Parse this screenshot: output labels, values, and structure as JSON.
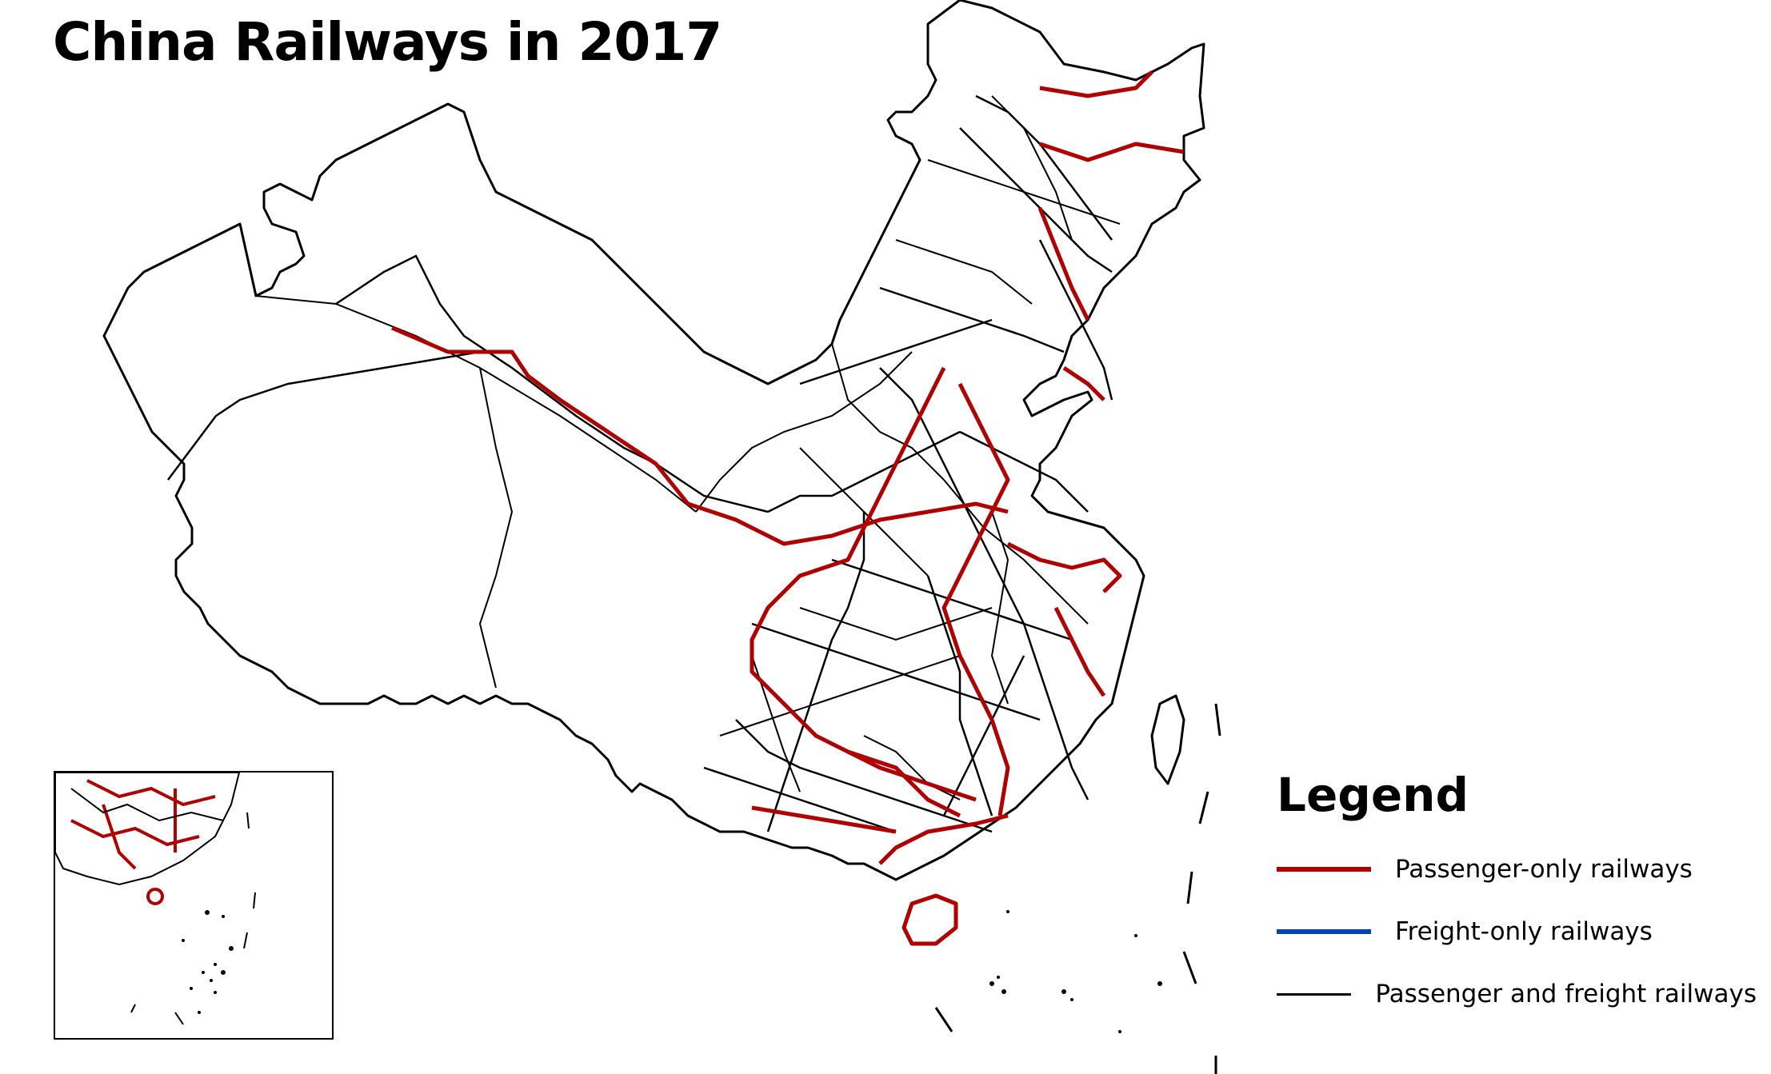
{
  "map": {
    "title": "China Railways in 2017"
  },
  "legend": {
    "title": "Legend",
    "items": [
      {
        "label": "Passenger-only railways",
        "color": "#b00000",
        "stroke": "thick"
      },
      {
        "label": "Freight-only railways",
        "color": "#0047ab",
        "stroke": "thick"
      },
      {
        "label": "Passenger and freight railways",
        "color": "#000000",
        "stroke": "thin"
      }
    ]
  },
  "inset": {
    "content": "South China Sea islands"
  }
}
